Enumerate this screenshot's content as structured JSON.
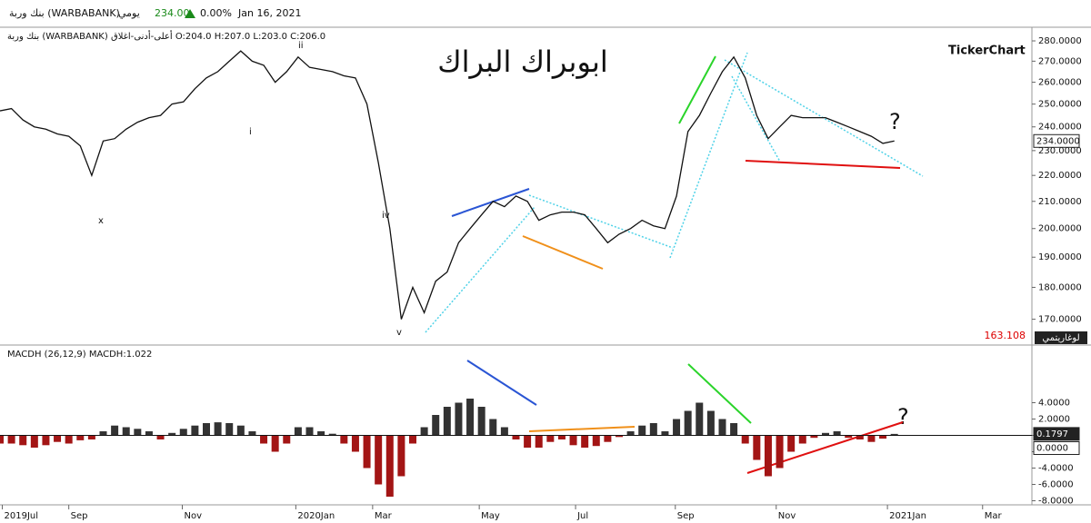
{
  "header": {
    "name": "بنك وربة (WARBABANK)",
    "period": "يومي",
    "price": "234.00",
    "change": "0.00%",
    "date": "Jan 16, 2021"
  },
  "chart_data": [
    {
      "type": "line",
      "subtitle": "بنك وربة (WARBABANK) أعلى-أدنى-اغلاق O:204.0 H:207.0 L:203.0 C:206.0",
      "title": "ابوبراك البراك",
      "brand": "TickerChart",
      "scale_label": "لوغاريتمي",
      "log_scale": true,
      "color": "#111111",
      "annotations": [
        "?",
        "x",
        "i",
        "ii",
        "iv",
        "v"
      ],
      "current_value": {
        "value": 234,
        "label": "234.0000"
      },
      "axis_min_label": "163.108",
      "xlim": [
        0,
        90
      ],
      "xticks": [
        {
          "value": 0.2,
          "label": "2019Jul"
        },
        {
          "value": 6,
          "label": "Sep"
        },
        {
          "value": 15.9,
          "label": "Nov"
        },
        {
          "value": 25.8,
          "label": "2020Jan"
        },
        {
          "value": 32.5,
          "label": "Mar"
        },
        {
          "value": 41.8,
          "label": "May"
        },
        {
          "value": 50.2,
          "label": "Jul"
        },
        {
          "value": 58.9,
          "label": "Sep"
        },
        {
          "value": 67.7,
          "label": "Nov"
        },
        {
          "value": 77.4,
          "label": "2021Jan"
        },
        {
          "value": 85.7,
          "label": "Mar"
        }
      ],
      "ylim": [
        163.108,
        286
      ],
      "yticks": [
        {
          "value": 170,
          "label": "170.0000"
        },
        {
          "value": 180,
          "label": "180.0000"
        },
        {
          "value": 190,
          "label": "190.0000"
        },
        {
          "value": 200,
          "label": "200.0000"
        },
        {
          "value": 210,
          "label": "210.0000"
        },
        {
          "value": 220,
          "label": "220.0000"
        },
        {
          "value": 230,
          "label": "230.0000"
        },
        {
          "value": 240,
          "label": "240.0000"
        },
        {
          "value": 250,
          "label": "250.0000"
        },
        {
          "value": 260,
          "label": "260.0000"
        },
        {
          "value": 270,
          "label": "270.0000"
        },
        {
          "value": 280,
          "label": "280.0000"
        }
      ],
      "values": [
        247,
        248,
        243,
        240,
        239,
        237,
        236,
        232,
        220,
        234,
        235,
        239,
        242,
        244,
        245,
        250,
        251,
        257,
        262,
        265,
        270,
        275,
        270,
        268,
        260,
        265,
        272,
        267,
        266,
        265,
        263,
        262,
        250,
        225,
        200,
        170,
        180,
        172,
        182,
        185,
        195,
        200,
        205,
        210,
        208,
        212,
        210,
        203,
        205,
        206,
        206,
        205,
        200,
        195,
        198,
        200,
        203,
        201,
        200,
        212,
        238,
        245,
        255,
        265,
        272,
        262,
        245,
        235,
        240,
        245,
        244,
        244,
        244,
        242,
        240,
        238,
        236,
        233,
        234
      ]
    },
    {
      "type": "bar",
      "title": "MACDH (26,12,9) MACDH:1.022",
      "annotations": [
        "?"
      ],
      "pos_color": "#333333",
      "neg_color": "#a31515",
      "current_value": {
        "value": 0.1797,
        "label": "0.1797"
      },
      "zero_label": {
        "value": 0,
        "label": "0.0000"
      },
      "xlim": [
        0,
        90
      ],
      "ylim": [
        -8.5,
        10.5
      ],
      "yticks": [
        {
          "value": -8,
          "label": "-8.0000"
        },
        {
          "value": -6,
          "label": "-6.0000"
        },
        {
          "value": -4,
          "label": "-4.0000"
        },
        {
          "value": -2,
          "label": "-2.0000"
        },
        {
          "value": 0,
          "label": "0.0000"
        },
        {
          "value": 2,
          "label": "2.0000"
        },
        {
          "value": 4,
          "label": "4.0000"
        }
      ],
      "values": [
        -1,
        -1,
        -1.2,
        -1.5,
        -1.2,
        -0.8,
        -1,
        -0.6,
        -0.5,
        0.5,
        1.2,
        1,
        0.8,
        0.5,
        -0.5,
        0.3,
        0.8,
        1.2,
        1.5,
        1.6,
        1.5,
        1.2,
        0.5,
        -1,
        -2,
        -1,
        1,
        1,
        0.5,
        0.2,
        -1,
        -2,
        -4,
        -6,
        -7.5,
        -5,
        -1,
        1,
        2.5,
        3.5,
        4,
        4.5,
        3.5,
        2,
        1,
        -0.5,
        -1.5,
        -1.5,
        -0.8,
        -0.5,
        -1.2,
        -1.5,
        -1.3,
        -0.8,
        -0.2,
        0.5,
        1.2,
        1.5,
        0.5,
        2,
        3,
        4,
        3,
        2,
        1.5,
        -1,
        -3,
        -5,
        -4,
        -2,
        -1,
        -0.3,
        0.3,
        0.5,
        -0.3,
        -0.5,
        -0.8,
        -0.4,
        0.1797
      ]
    }
  ]
}
